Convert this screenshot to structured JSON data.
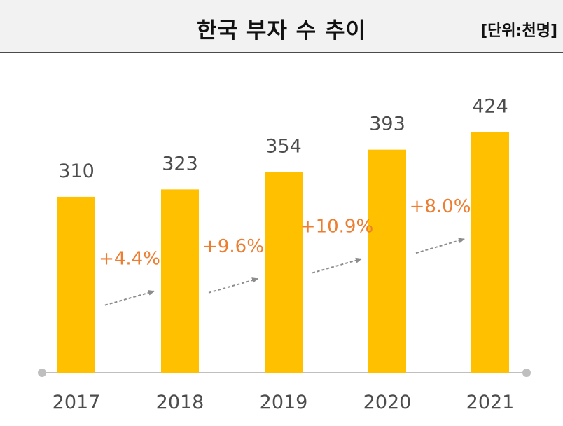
{
  "header": {
    "title": "한국 부자 수 추이",
    "unit": "[단위:천명]"
  },
  "colors": {
    "bar": "#FFC000",
    "label": "#4d4d4d",
    "growth": "#ED7D31",
    "arrow": "#8c8c8c",
    "axis": "#bfbfbf"
  },
  "chart_data": {
    "type": "bar",
    "title": "한국 부자 수 추이",
    "unit": "[단위:천명]",
    "categories": [
      "2017",
      "2018",
      "2019",
      "2020",
      "2021"
    ],
    "values": [
      310,
      323,
      354,
      393,
      424
    ],
    "data_labels": [
      "310",
      "323",
      "354",
      "393",
      "424"
    ],
    "growth_annotations": [
      "+4.4%",
      "+9.6%",
      "+10.9%",
      "+8.0%"
    ],
    "ylim": [
      0,
      500
    ],
    "grid": false,
    "legend": "none"
  }
}
